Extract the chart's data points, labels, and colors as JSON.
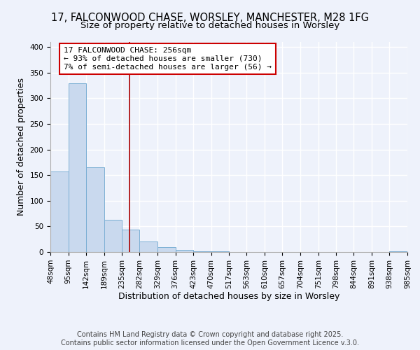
{
  "title_line1": "17, FALCONWOOD CHASE, WORSLEY, MANCHESTER, M28 1FG",
  "title_line2": "Size of property relative to detached houses in Worsley",
  "xlabel": "Distribution of detached houses by size in Worsley",
  "ylabel": "Number of detached properties",
  "bar_values": [
    157,
    330,
    165,
    63,
    44,
    20,
    9,
    4,
    1,
    1,
    0,
    0,
    0,
    0,
    0,
    0,
    0,
    0,
    0,
    1
  ],
  "bin_edges": [
    48,
    95,
    142,
    189,
    235,
    282,
    329,
    376,
    423,
    470,
    517,
    563,
    610,
    657,
    704,
    751,
    798,
    844,
    891,
    938,
    985
  ],
  "x_tick_labels": [
    "48sqm",
    "95sqm",
    "142sqm",
    "189sqm",
    "235sqm",
    "282sqm",
    "329sqm",
    "376sqm",
    "423sqm",
    "470sqm",
    "517sqm",
    "563sqm",
    "610sqm",
    "657sqm",
    "704sqm",
    "751sqm",
    "798sqm",
    "844sqm",
    "891sqm",
    "938sqm",
    "985sqm"
  ],
  "bar_color": "#c9d9ee",
  "bar_edge_color": "#7bafd4",
  "vline_x": 256,
  "vline_color": "#aa0000",
  "annotation_text": "17 FALCONWOOD CHASE: 256sqm\n← 93% of detached houses are smaller (730)\n7% of semi-detached houses are larger (56) →",
  "annotation_box_color": "#ffffff",
  "annotation_box_edge_color": "#cc0000",
  "ylim": [
    0,
    410
  ],
  "yticks": [
    0,
    50,
    100,
    150,
    200,
    250,
    300,
    350,
    400
  ],
  "background_color": "#eef2fb",
  "grid_color": "#ffffff",
  "footer_line1": "Contains HM Land Registry data © Crown copyright and database right 2025.",
  "footer_line2": "Contains public sector information licensed under the Open Government Licence v.3.0.",
  "title_fontsize": 10.5,
  "subtitle_fontsize": 9.5,
  "axis_label_fontsize": 9,
  "tick_fontsize": 7.5,
  "footer_fontsize": 7,
  "annotation_fontsize": 8
}
